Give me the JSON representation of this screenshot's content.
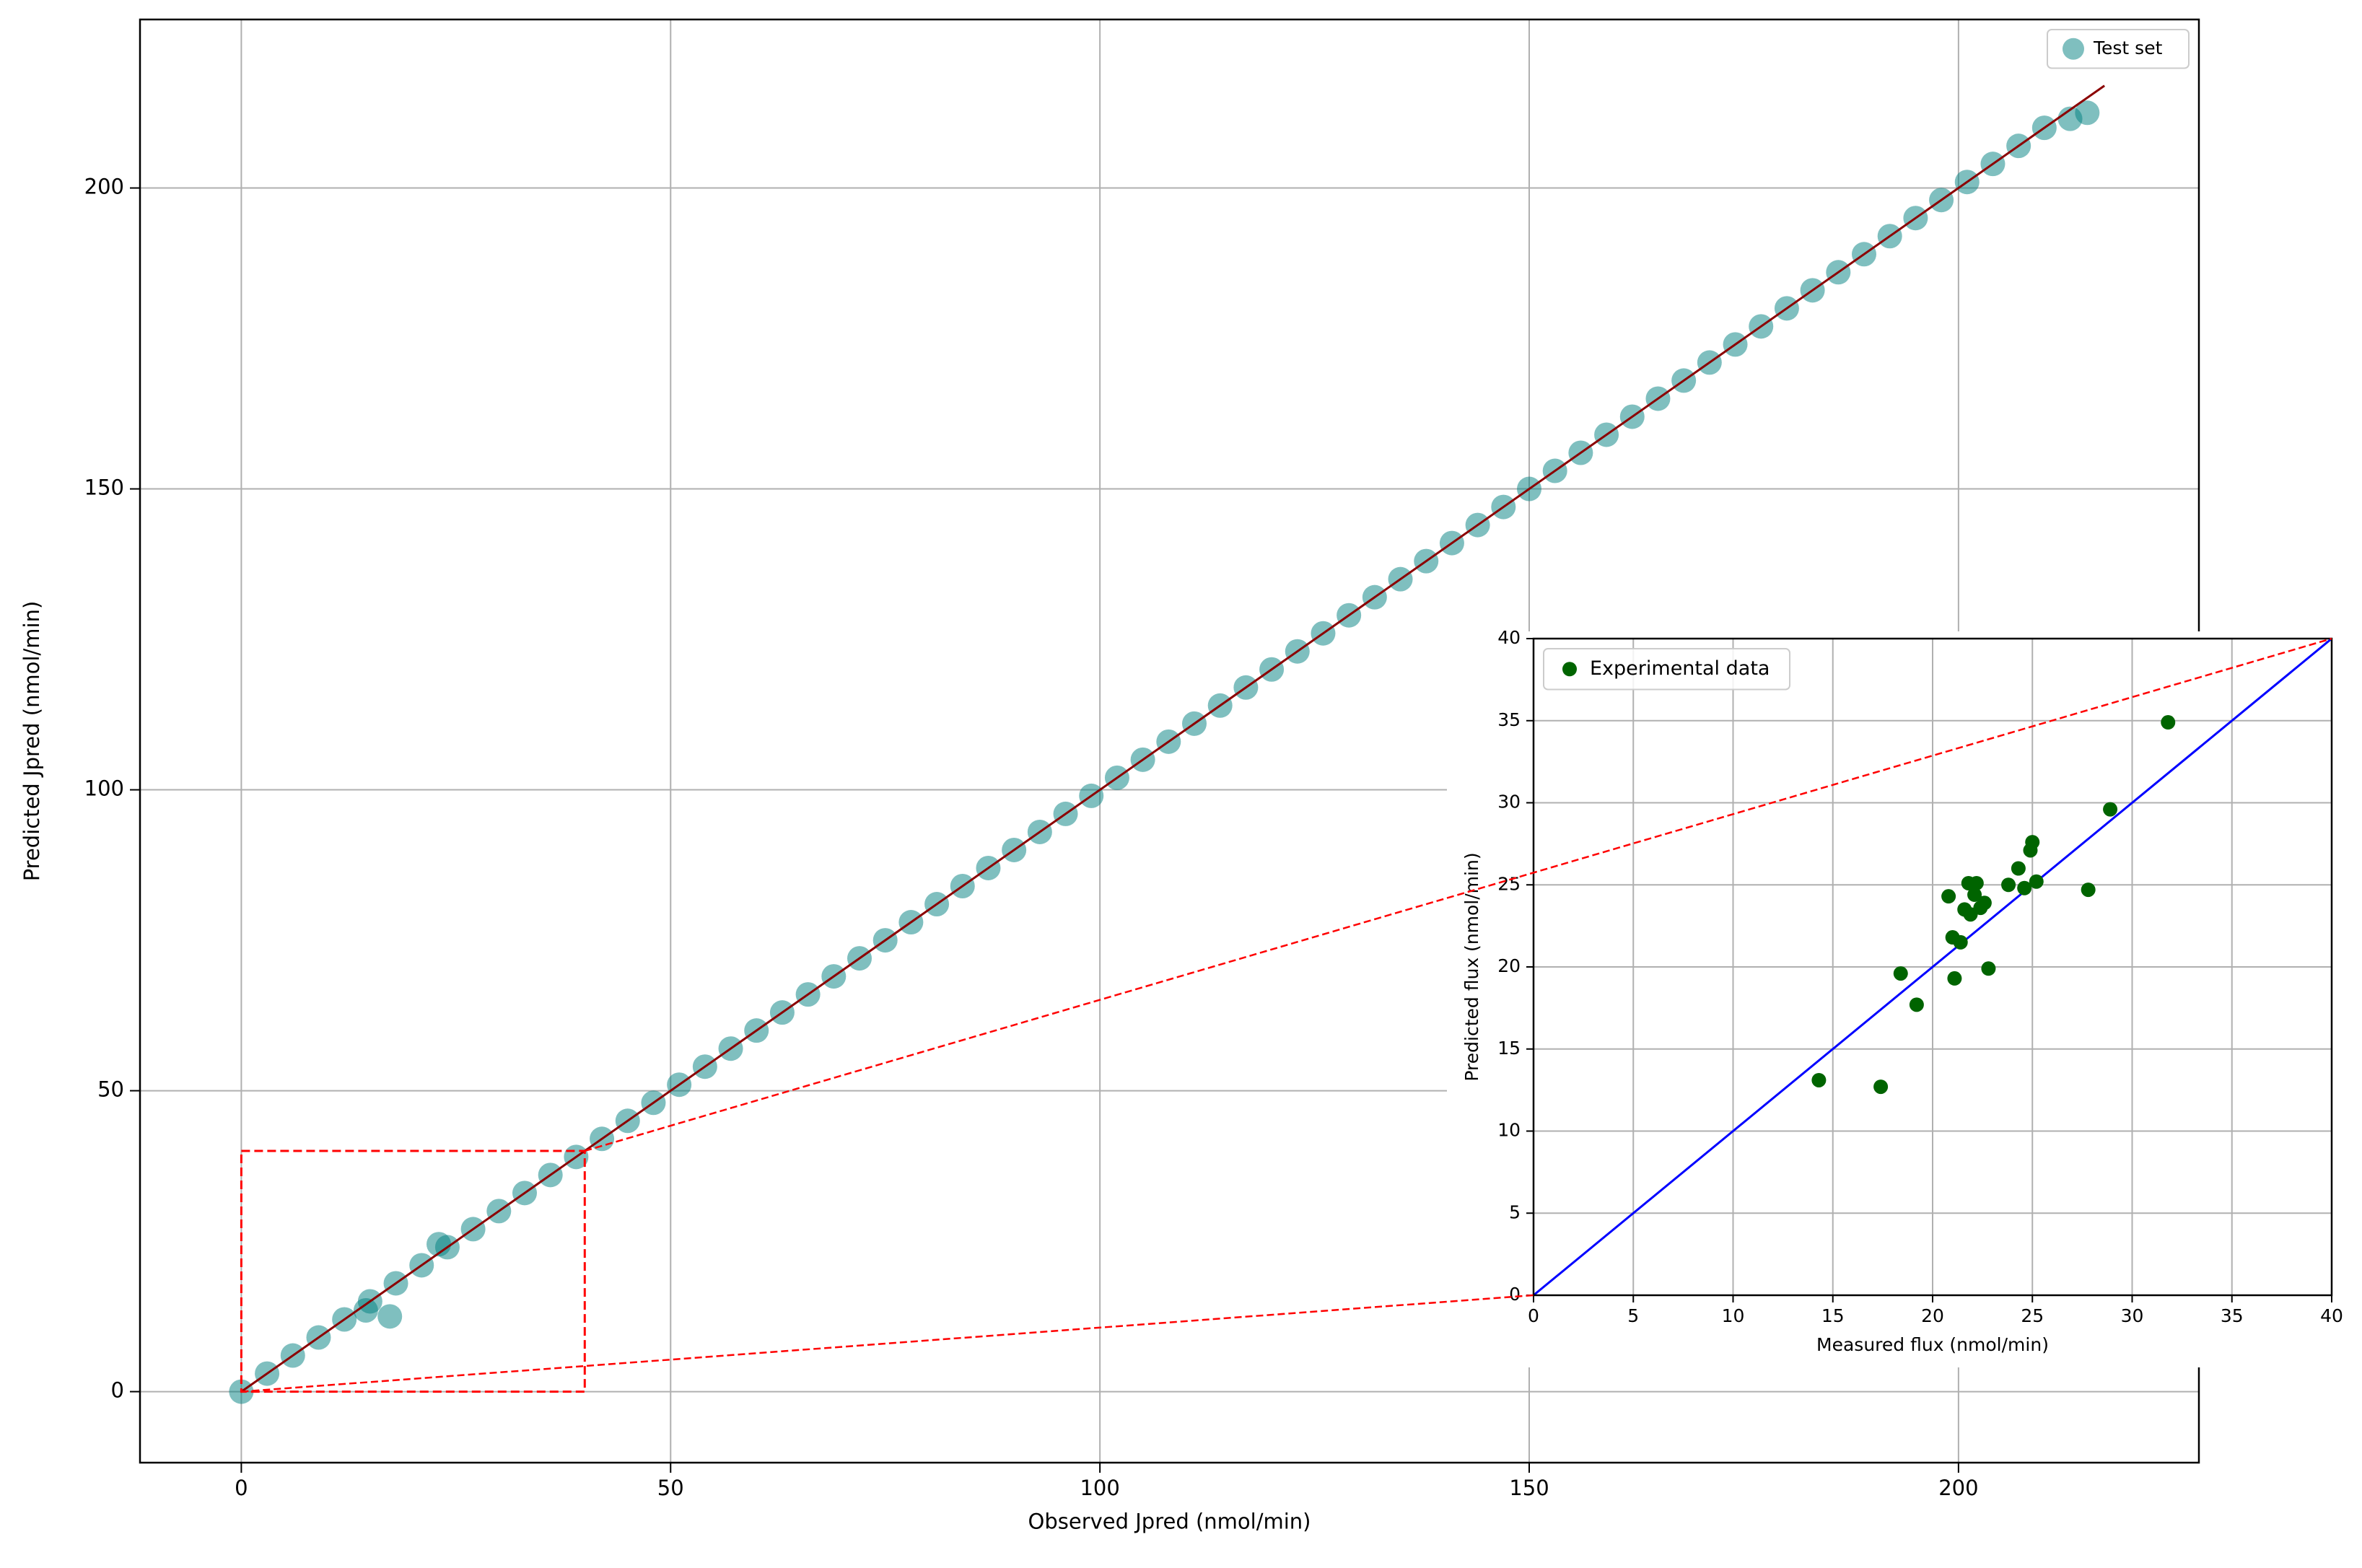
{
  "chart_data": [
    {
      "type": "scatter",
      "xlabel": "Observed Jpred (nmol/min)",
      "ylabel": "Predicted Jpred (nmol/min)",
      "xlim": [
        -11.8,
        228
      ],
      "ylim": [
        -11.8,
        228
      ],
      "xticks": [
        0,
        50,
        100,
        150,
        200
      ],
      "yticks": [
        0,
        50,
        100,
        150,
        200
      ],
      "grid": true,
      "legend": "upper right",
      "marker_alpha": 0.5,
      "series": [
        {
          "name": "Test set",
          "color": "#008080",
          "x": [
            0,
            3,
            6,
            9,
            12,
            15,
            18,
            21,
            24,
            27,
            30,
            33,
            36,
            39,
            42,
            45,
            48,
            51,
            54,
            57,
            60,
            63,
            66,
            69,
            72,
            75,
            78,
            81,
            84,
            87,
            90,
            93,
            96,
            99,
            102,
            105,
            108,
            111,
            114,
            117,
            120,
            123,
            126,
            129,
            132,
            135,
            138,
            141,
            144,
            147,
            150,
            153,
            156,
            159,
            162,
            165,
            168,
            171,
            174,
            177,
            180,
            183,
            186,
            189,
            192,
            195,
            198,
            201,
            204,
            207,
            210,
            213,
            14.5,
            17.3,
            23,
            215
          ],
          "values": [
            0,
            3,
            6,
            9,
            12,
            15,
            18,
            21,
            24,
            27,
            30,
            33,
            36,
            39,
            42,
            45,
            48,
            51,
            54,
            57,
            60,
            63,
            66,
            69,
            72,
            75,
            78,
            81,
            84,
            87,
            90,
            93,
            96,
            99,
            102,
            105,
            108,
            111,
            114,
            117,
            120,
            123,
            126,
            129,
            132,
            135,
            138,
            141,
            144,
            147,
            150,
            153,
            156,
            159,
            162,
            165,
            168,
            171,
            174,
            177,
            180,
            183,
            186,
            189,
            192,
            195,
            198,
            201,
            204,
            207,
            210,
            211.5,
            13.5,
            12.5,
            24.5,
            212.5
          ]
        }
      ],
      "reference_line": {
        "color": "#8b0000",
        "x": [
          0,
          217
        ],
        "y": [
          0,
          217
        ]
      },
      "zoom_box": {
        "color": "#ff0000",
        "xlim": [
          0,
          40
        ],
        "ylim": [
          0,
          40
        ]
      }
    },
    {
      "type": "scatter",
      "xlabel": "Measured flux (nmol/min)",
      "ylabel": "Predicted flux (nmol/min)",
      "xlim": [
        0,
        40
      ],
      "ylim": [
        0,
        40
      ],
      "xticks": [
        0,
        5,
        10,
        15,
        20,
        25,
        30,
        35,
        40
      ],
      "yticks": [
        0,
        5,
        10,
        15,
        20,
        25,
        30,
        35,
        40
      ],
      "grid": true,
      "legend": "upper left",
      "marker_alpha": 1,
      "series": [
        {
          "name": "Experimental data",
          "color": "#006400",
          "x": [
            14.3,
            17.4,
            18.4,
            19.2,
            20.8,
            21.0,
            21.1,
            21.4,
            21.6,
            21.8,
            21.9,
            22.1,
            22.2,
            22.4,
            22.6,
            22.8,
            23.8,
            24.3,
            24.6,
            24.9,
            25.0,
            25.2,
            27.8,
            28.9,
            31.8
          ],
          "values": [
            13.1,
            12.7,
            19.6,
            17.7,
            24.3,
            21.8,
            19.3,
            21.5,
            23.5,
            25.1,
            23.2,
            24.4,
            25.1,
            23.6,
            23.9,
            19.9,
            25.0,
            26.0,
            24.8,
            27.1,
            27.6,
            25.2,
            24.7,
            29.6,
            34.9
          ]
        }
      ],
      "reference_line": {
        "color": "#0000ff",
        "x": [
          0,
          40
        ],
        "y": [
          0,
          40
        ]
      }
    }
  ]
}
